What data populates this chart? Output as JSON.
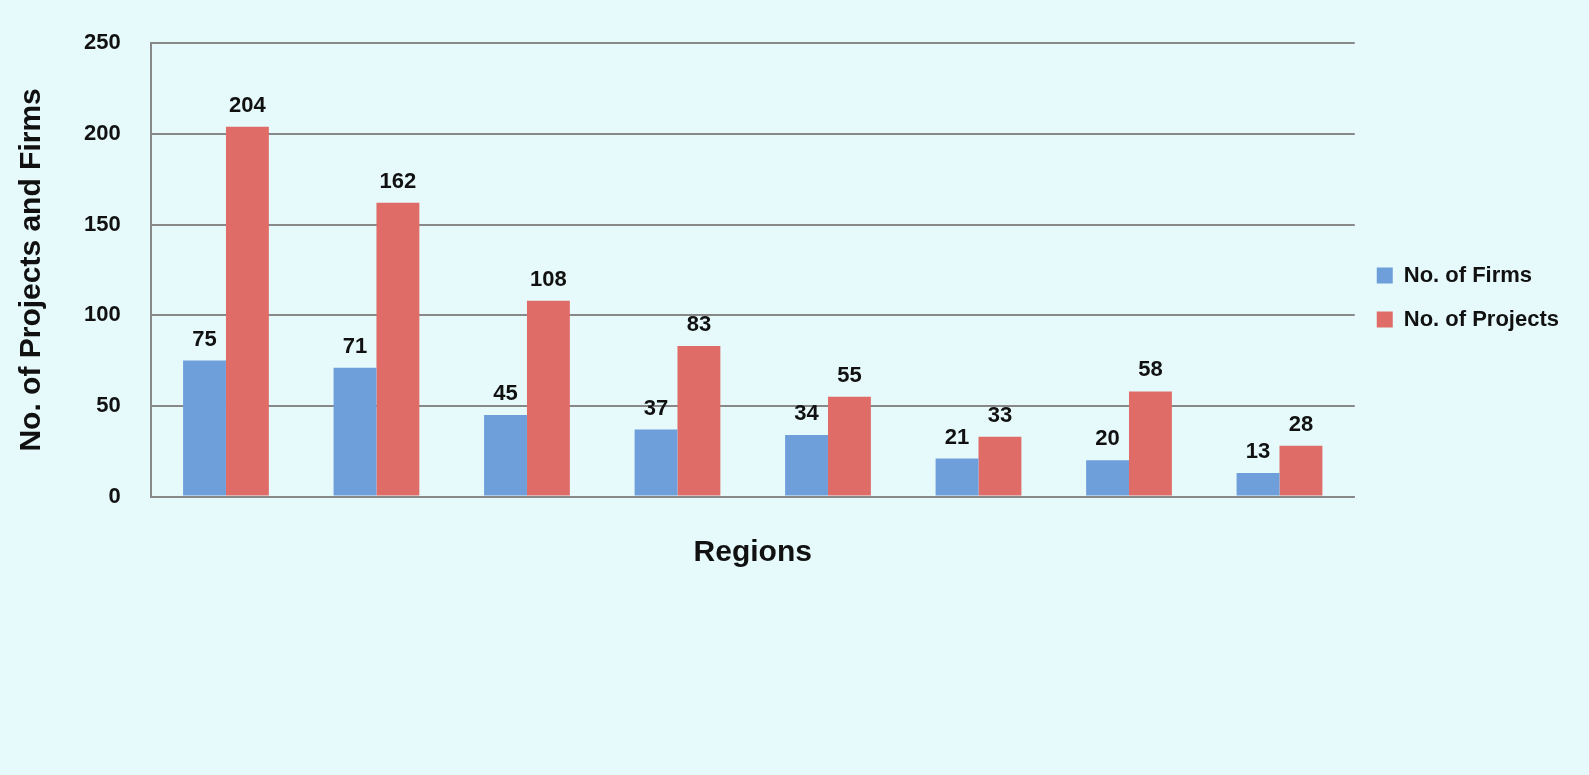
{
  "chart_data": {
    "type": "bar",
    "xlabel": "Regions",
    "ylabel": "No. of Projects and Firms",
    "categories": [
      null,
      null,
      null,
      null,
      null,
      null,
      null,
      null
    ],
    "series": [
      {
        "name": "No. of Firms",
        "color": "#6f9fdb",
        "values": [
          75,
          71,
          45,
          37,
          34,
          21,
          20,
          13
        ]
      },
      {
        "name": "No. of Projects",
        "color": "#e06c68",
        "values": [
          204,
          162,
          108,
          83,
          55,
          33,
          58,
          28
        ]
      }
    ],
    "ylim": [
      0,
      250
    ],
    "yticks": [
      0,
      50,
      100,
      150,
      200,
      250
    ],
    "grid": "y",
    "legend": "right",
    "data_labels": true
  }
}
